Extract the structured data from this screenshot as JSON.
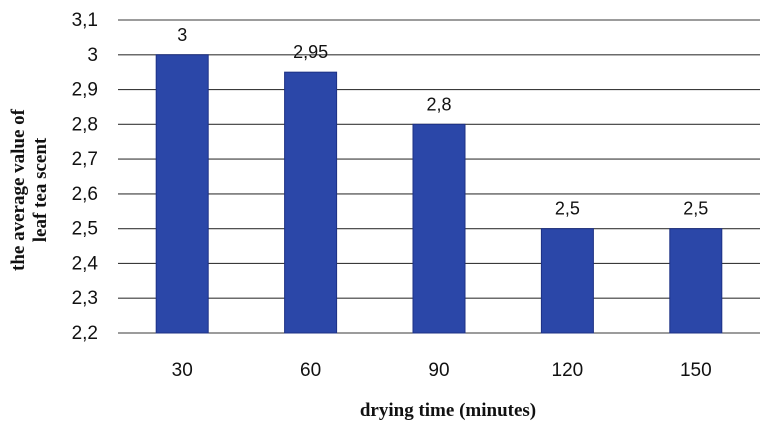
{
  "chart_data": {
    "type": "bar",
    "categories": [
      "30",
      "60",
      "90",
      "120",
      "150"
    ],
    "values": [
      3,
      2.95,
      2.8,
      2.5,
      2.5
    ],
    "data_labels": [
      "3",
      "2,95",
      "2,8",
      "2,5",
      "2,5"
    ],
    "xlabel": "drying time (minutes)",
    "ylabel_lines": [
      "the average value of",
      "leaf tea scent"
    ],
    "ylim": [
      2.2,
      3.1
    ],
    "y_ticks": [
      2.2,
      2.3,
      2.4,
      2.5,
      2.6,
      2.7,
      2.8,
      2.9,
      3.0,
      3.1
    ],
    "y_tick_labels": [
      "2,2",
      "2,3",
      "2,4",
      "2,5",
      "2,6",
      "2,7",
      "2,8",
      "2,9",
      "3",
      "3,1"
    ],
    "grid": true,
    "legend": "none",
    "colors": {
      "bar": "#2b47a8",
      "bar_edge": "#1d3185",
      "grid": "#3a3a3a"
    }
  }
}
